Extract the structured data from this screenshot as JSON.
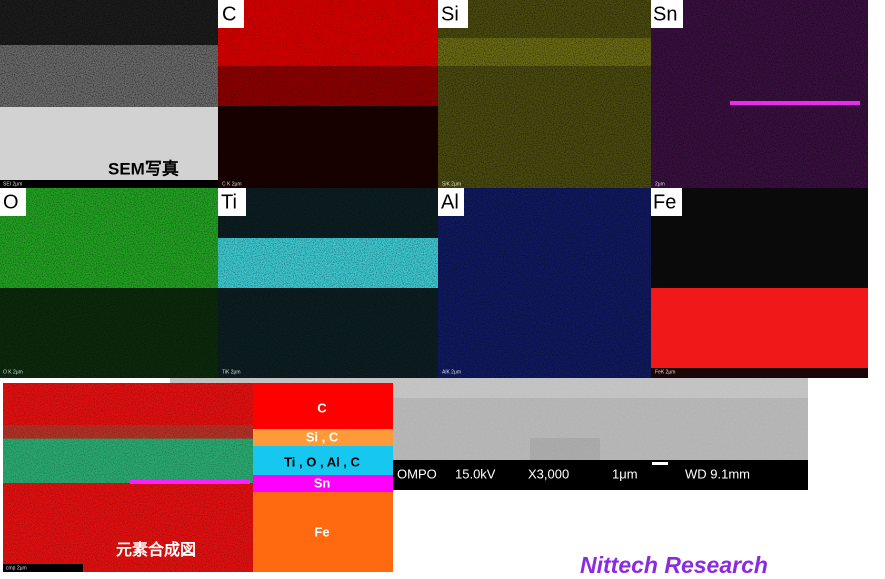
{
  "panels": [
    {
      "label": "SEM写真",
      "scale_label": "SEI 2μm"
    },
    {
      "label": "C",
      "scale_label": "C K 2μm"
    },
    {
      "label": "Si",
      "scale_label": "SiK 2μm"
    },
    {
      "label": "Sn",
      "scale_label": "2μm"
    },
    {
      "label": "O",
      "scale_label": "O K 2μm"
    },
    {
      "label": "Ti",
      "scale_label": "TiK 2μm"
    },
    {
      "label": "Al",
      "scale_label": "AlK 2μm"
    },
    {
      "label": "Fe",
      "scale_label": "FeK 2μm"
    }
  ],
  "composite": {
    "label": "元素合成図",
    "scale_label": "cmp 2μm"
  },
  "legend": [
    "C",
    "Si , C",
    "Ti , O , Al , C",
    "Sn",
    "Fe"
  ],
  "sem_info": [
    "OMPO",
    "15.0kV",
    "X3,000",
    "1μm",
    "WD 9.1mm"
  ],
  "watermark": "Nittech Research"
}
